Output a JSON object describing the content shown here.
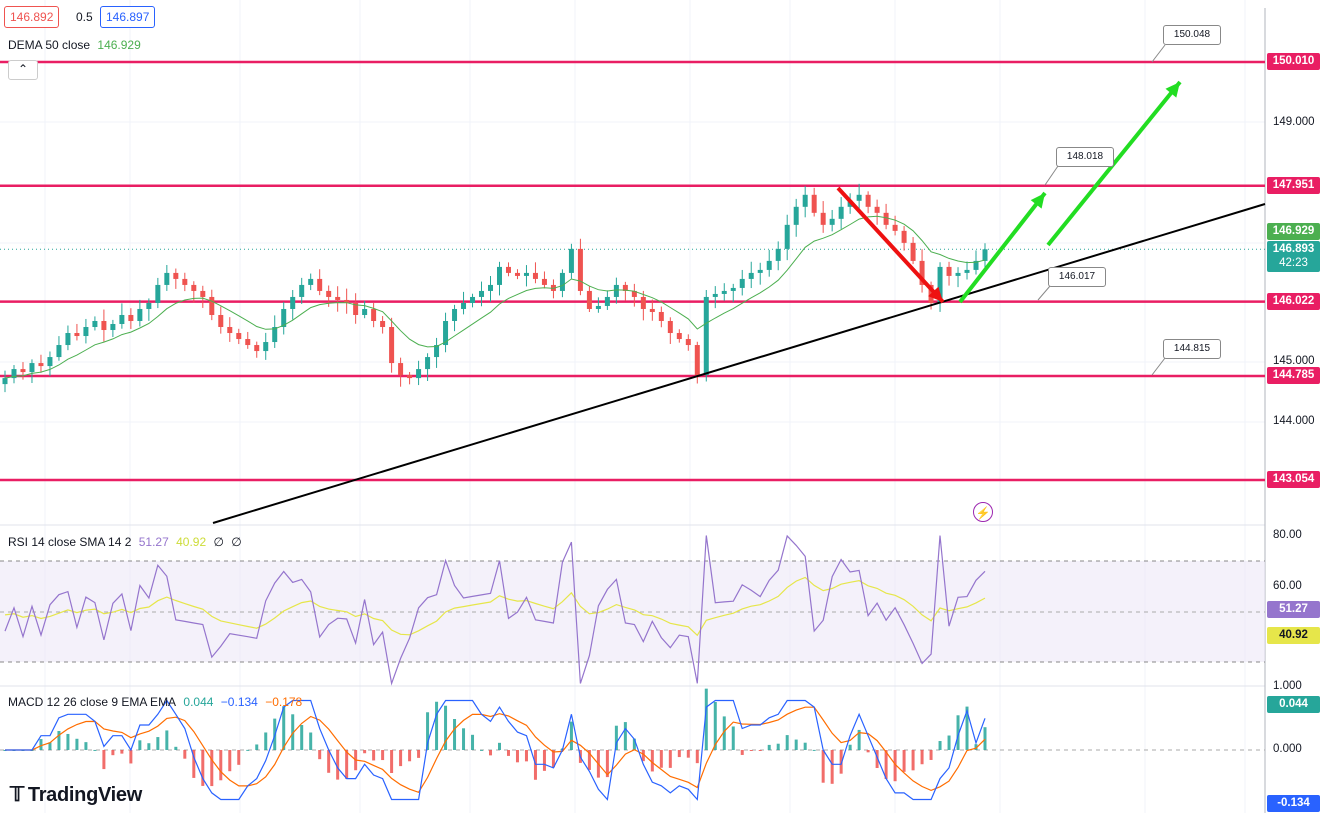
{
  "header": {
    "bid": "146.892",
    "spread": "0.5",
    "ask": "146.897",
    "dema_label": "DEMA 50 close",
    "dema_value": "146.929",
    "collapse_icon": "chevron-up-icon"
  },
  "price_axis": {
    "ticks": [
      "149.000",
      "145.000",
      "144.000"
    ],
    "badges": {
      "level_150": "150.010",
      "level_1479": "147.951",
      "dema": "146.929",
      "last": "146.893",
      "countdown": "42:23",
      "level_1460": "146.022",
      "level_1447": "144.785",
      "level_1430": "143.054"
    }
  },
  "callouts": [
    "150.048",
    "148.018",
    "146.017",
    "144.815"
  ],
  "rsi": {
    "label": "RSI 14 close SMA 14 2",
    "rsi_value": "51.27",
    "sma_value": "40.92",
    "extra1": "∅",
    "extra2": "∅",
    "ticks": [
      "80.00",
      "60.00"
    ],
    "badge_rsi": "51.27",
    "badge_sma": "40.92"
  },
  "macd": {
    "label": "MACD 12 26 close 9 EMA EMA",
    "hist": "0.044",
    "macd": "−0.134",
    "signal": "−0.178",
    "ticks": [
      "1.000",
      "0.000"
    ],
    "badge_hist": "0.044",
    "badge_macd": "-0.134"
  },
  "logo": "TradingView",
  "colors": {
    "up": "#26a69a",
    "down": "#ef5350",
    "level": "#e91e63",
    "dema": "#4caf50",
    "rsi": "#9575cd",
    "rsi_sma": "#e6e64a",
    "macd": "#2962ff",
    "signal": "#ff6d00",
    "trend": "#000000",
    "arrow_green": "#22dd22",
    "arrow_red": "#ee1111"
  },
  "chart_data": {
    "type": "candlestick",
    "symbol_note": "",
    "levels": [
      150.01,
      147.951,
      146.022,
      144.785,
      143.054
    ],
    "last_price": 146.893,
    "dema50": 146.929,
    "ylim": [
      142.5,
      150.9
    ],
    "closes": [
      144.75,
      144.9,
      144.85,
      145.0,
      144.95,
      145.1,
      145.3,
      145.5,
      145.45,
      145.6,
      145.7,
      145.55,
      145.65,
      145.8,
      145.7,
      145.9,
      146.0,
      146.3,
      146.5,
      146.4,
      146.3,
      146.2,
      146.1,
      145.8,
      145.6,
      145.5,
      145.4,
      145.3,
      145.2,
      145.35,
      145.6,
      145.9,
      146.1,
      146.3,
      146.4,
      146.2,
      146.1,
      146.05,
      146.0,
      145.8,
      145.9,
      145.7,
      145.6,
      145.0,
      144.8,
      144.75,
      144.9,
      145.1,
      145.3,
      145.7,
      145.9,
      146.0,
      146.1,
      146.2,
      146.3,
      146.6,
      146.5,
      146.45,
      146.5,
      146.4,
      146.3,
      146.2,
      146.5,
      146.9,
      146.2,
      145.9,
      145.95,
      146.1,
      146.3,
      146.2,
      146.1,
      145.9,
      145.85,
      145.7,
      145.5,
      145.4,
      145.3,
      144.8,
      146.1,
      146.15,
      146.2,
      146.25,
      146.4,
      146.5,
      146.55,
      146.7,
      146.9,
      147.3,
      147.6,
      147.8,
      147.5,
      147.3,
      147.4,
      147.6,
      147.7,
      147.8,
      147.6,
      147.5,
      147.3,
      147.2,
      147.0,
      146.7,
      146.3,
      146.0,
      146.6,
      146.45,
      146.5,
      146.55,
      146.7,
      146.893
    ],
    "rsi_last": 51.27,
    "rsi_sma_last": 40.92,
    "macd_hist_last": 0.044,
    "macd_last": -0.134,
    "signal_last": -0.178
  }
}
